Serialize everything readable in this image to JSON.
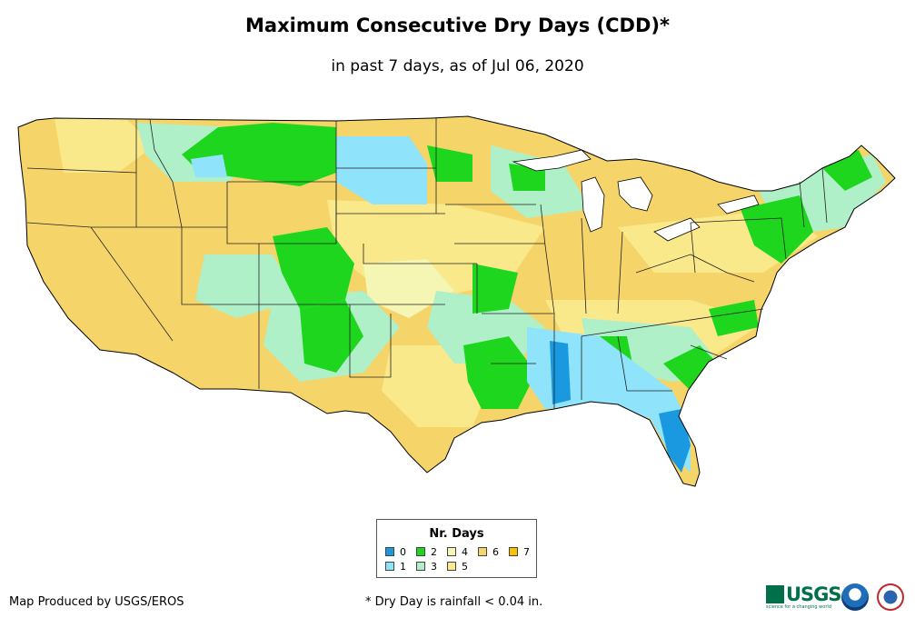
{
  "header": {
    "title": "Maximum Consecutive Dry Days (CDD)*",
    "subtitle": "in past 7 days, as of Jul 06, 2020"
  },
  "legend": {
    "title": "Nr. Days",
    "items": [
      {
        "label": "0",
        "color": "#1a99e0"
      },
      {
        "label": "1",
        "color": "#8fe3fa"
      },
      {
        "label": "2",
        "color": "#1fd61f"
      },
      {
        "label": "3",
        "color": "#aff0c8"
      },
      {
        "label": "4",
        "color": "#f5f5b4"
      },
      {
        "label": "5",
        "color": "#f9e98a"
      },
      {
        "label": "6",
        "color": "#f5d46a"
      },
      {
        "label": "7",
        "color": "#f7c200"
      }
    ]
  },
  "footer": {
    "credit": "Map Produced by USGS/EROS",
    "footnote": "* Dry Day is rainfall < 0.04 in."
  },
  "logos": {
    "usgs": "USGS",
    "usgs_tagline": "science for a changing world",
    "noaa": "noaa-seal-icon",
    "nws": "nws-seal-icon"
  }
}
